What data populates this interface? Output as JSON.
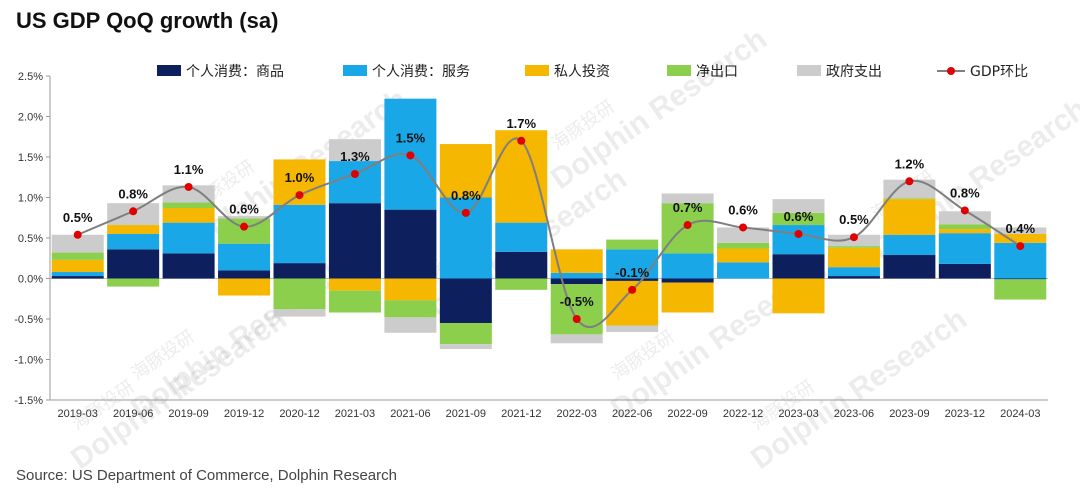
{
  "chart_data": {
    "type": "bar",
    "stacked": true,
    "title": "US GDP QoQ growth (sa)",
    "source": "Source: US Department of Commerce, Dolphin Research",
    "watermark": "Dolphin Research",
    "watermark_cn": "海豚投研",
    "ylim": [
      -1.5,
      2.5
    ],
    "yticks": [
      {
        "v": 2.5,
        "label": "2.5%"
      },
      {
        "v": 2.0,
        "label": "2.0%"
      },
      {
        "v": 1.5,
        "label": "1.5%"
      },
      {
        "v": 1.0,
        "label": "1.0%"
      },
      {
        "v": 0.5,
        "label": "0.5%"
      },
      {
        "v": 0.0,
        "label": "0.0%"
      },
      {
        "v": -0.5,
        "label": "-0.5%"
      },
      {
        "v": -1.0,
        "label": "-1.0%"
      },
      {
        "v": -1.5,
        "label": "-1.5%"
      }
    ],
    "categories": [
      "2019-03",
      "2019-06",
      "2019-09",
      "2019-12",
      "2020-12",
      "2021-03",
      "2021-06",
      "2021-09",
      "2021-12",
      "2022-03",
      "2022-06",
      "2022-09",
      "2022-12",
      "2023-03",
      "2023-06",
      "2023-09",
      "2023-12",
      "2024-03"
    ],
    "series": [
      {
        "name": "个人消费：商品",
        "color": "#0d1f5c",
        "values": [
          0.03,
          0.36,
          0.31,
          0.1,
          0.19,
          0.93,
          0.85,
          -0.55,
          0.33,
          -0.07,
          -0.03,
          -0.05,
          0.0,
          0.3,
          0.03,
          0.29,
          0.18,
          -0.01
        ]
      },
      {
        "name": "个人消费：服务",
        "color": "#1aa7e8",
        "values": [
          0.05,
          0.19,
          0.38,
          0.33,
          0.72,
          0.52,
          1.37,
          1.0,
          0.36,
          0.07,
          0.36,
          0.31,
          0.2,
          0.36,
          0.11,
          0.25,
          0.38,
          0.44
        ]
      },
      {
        "name": "私人投资",
        "color": "#f5b700",
        "values": [
          0.15,
          0.11,
          0.18,
          -0.21,
          0.56,
          -0.15,
          -0.27,
          0.66,
          1.14,
          0.29,
          -0.55,
          -0.37,
          0.17,
          -0.43,
          0.24,
          0.44,
          0.05,
          0.11
        ]
      },
      {
        "name": "净出口",
        "color": "#8ccf4d",
        "values": [
          0.09,
          -0.1,
          0.07,
          0.31,
          -0.38,
          -0.27,
          -0.21,
          -0.26,
          -0.14,
          -0.62,
          0.12,
          0.62,
          0.07,
          0.15,
          0.02,
          0.01,
          0.06,
          -0.25
        ]
      },
      {
        "name": "政府支出",
        "color": "#cccccc",
        "values": [
          0.22,
          0.27,
          0.21,
          0.03,
          -0.09,
          0.27,
          -0.19,
          -0.06,
          0.0,
          -0.11,
          -0.08,
          0.12,
          0.19,
          0.17,
          0.14,
          0.23,
          0.16,
          0.08
        ]
      }
    ],
    "line": {
      "name": "GDP环比",
      "color": "#7f7f7f",
      "marker_color": "#e00000",
      "values": [
        0.54,
        0.83,
        1.13,
        0.64,
        1.03,
        1.29,
        1.52,
        0.81,
        1.7,
        -0.5,
        -0.14,
        0.66,
        0.63,
        0.55,
        0.51,
        1.2,
        0.84,
        0.4
      ],
      "labels": [
        "0.5%",
        "0.8%",
        "1.1%",
        "0.6%",
        "1.0%",
        "1.3%",
        "1.5%",
        "0.8%",
        "1.7%",
        "-0.5%",
        "-0.1%",
        "0.7%",
        "0.6%",
        "0.6%",
        "0.5%",
        "1.2%",
        "0.8%",
        "0.4%"
      ]
    },
    "legend_position": "top"
  }
}
